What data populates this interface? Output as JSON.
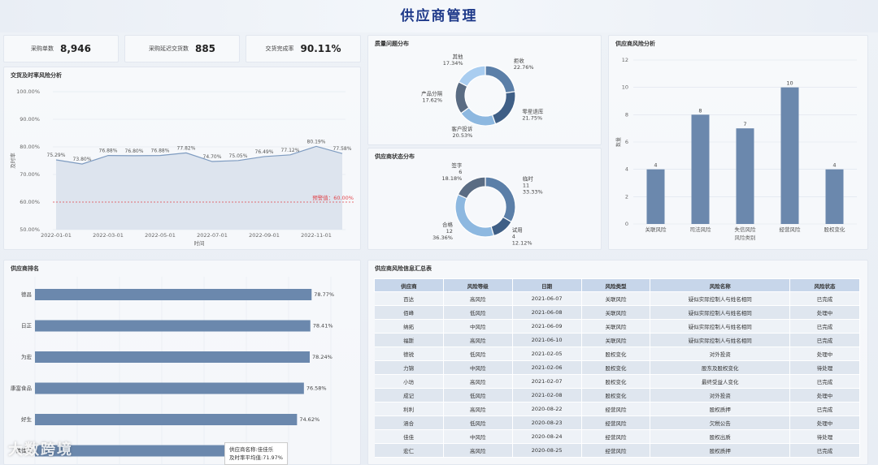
{
  "header": {
    "title": "供应商管理"
  },
  "kpis": [
    {
      "label": "采购单数",
      "value": "8,946"
    },
    {
      "label": "采购延迟交货数",
      "value": "885"
    },
    {
      "label": "交货完成率",
      "value": "90.11%"
    }
  ],
  "delivery_panel": {
    "title": "交货及时率风险分析"
  },
  "quality_panel": {
    "title": "质量问题分布"
  },
  "status_panel": {
    "title": "供应商状态分布"
  },
  "risk_panel": {
    "title": "供应商风险分析"
  },
  "ranking_panel": {
    "title": "供应商排名"
  },
  "table_panel": {
    "title": "供应商风险信息汇总表"
  },
  "chart_data": [
    {
      "type": "area",
      "title": "交货及时率风险分析",
      "xlabel": "时间",
      "ylabel": "及时率",
      "ylim": [
        50,
        100
      ],
      "yticks": [
        "100.00%",
        "90.00%",
        "80.00%",
        "70.00%",
        "60.00%",
        "50.00%"
      ],
      "xticks": [
        "2022-01-01",
        "2022-03-01",
        "2022-05-01",
        "2022-07-01",
        "2022-09-01",
        "2022-11-01"
      ],
      "values": [
        75.29,
        73.8,
        76.88,
        76.8,
        76.88,
        77.82,
        74.7,
        75.05,
        76.49,
        77.12,
        80.19,
        77.58
      ],
      "labels": [
        "75.29%",
        "73.80%",
        "76.88%",
        "76.80%",
        "76.88%",
        "77.82%",
        "74.70%",
        "75.05%",
        "76.49%",
        "77.12%",
        "80.19%",
        "77.58%"
      ],
      "threshold": 60,
      "threshold_label": "预警值：60.00%"
    },
    {
      "type": "pie",
      "title": "质量问题分布",
      "slices": [
        {
          "name": "拒收",
          "pct": "22.76%",
          "value": 22.76,
          "color": "#5b7fa8"
        },
        {
          "name": "零星退库",
          "pct": "21.75%",
          "value": 21.75,
          "color": "#3f5f86"
        },
        {
          "name": "客户投诉",
          "pct": "20.53%",
          "value": 20.53,
          "color": "#8db8e0"
        },
        {
          "name": "产品分隔",
          "pct": "17.62%",
          "value": 17.62,
          "color": "#5a6c83"
        },
        {
          "name": "其他",
          "pct": "17.34%",
          "value": 17.34,
          "color": "#a9cdf0"
        }
      ]
    },
    {
      "type": "pie",
      "title": "供应商状态分布",
      "slices": [
        {
          "name": "临时",
          "count": "11",
          "pct": "33.33%",
          "value": 11,
          "color": "#5b7fa8"
        },
        {
          "name": "试用",
          "count": "4",
          "pct": "12.12%",
          "value": 4,
          "color": "#3f5f86"
        },
        {
          "name": "合格",
          "count": "12",
          "pct": "36.36%",
          "value": 12,
          "color": "#8db8e0"
        },
        {
          "name": "签字",
          "count": "6",
          "pct": "18.18%",
          "value": 6,
          "color": "#5a6c83"
        }
      ]
    },
    {
      "type": "bar",
      "title": "供应商风险分析",
      "categories": [
        "关联风险",
        "司法风险",
        "失信风险",
        "经营风险",
        "股权变化"
      ],
      "values": [
        4,
        8,
        7,
        10,
        4
      ],
      "ylim": [
        0,
        12
      ],
      "yticks": [
        "12",
        "10",
        "8",
        "6",
        "4",
        "2",
        "0"
      ],
      "xlabel": "风险类别",
      "ylabel": "数量"
    },
    {
      "type": "bar",
      "orientation": "horizontal",
      "title": "供应商排名",
      "categories": [
        "德昌",
        "日正",
        "为宏",
        "康富食品",
        "好生",
        "佳佳乐"
      ],
      "values": [
        78.77,
        78.41,
        78.24,
        76.58,
        74.62,
        71.97
      ],
      "labels": [
        "78.77%",
        "78.41%",
        "78.24%",
        "76.58%",
        "74.62%",
        ""
      ],
      "xlim": [
        0,
        100
      ]
    }
  ],
  "tooltip": {
    "line1": "供应商名称:佳佳乐",
    "line2": "及时率平均值:71.97%"
  },
  "watermark": "大数跨境",
  "table": {
    "headers": [
      "供应商",
      "风险等级",
      "日期",
      "风险类型",
      "风险名称",
      "风险状态"
    ],
    "rows": [
      [
        "百达",
        "高风险",
        "2021-06-07",
        "关联风险",
        "疑似实际控制人与姓名相同",
        "已完成"
      ],
      [
        "佰峰",
        "低风险",
        "2021-06-08",
        "关联风险",
        "疑似实际控制人与姓名相同",
        "处理中"
      ],
      [
        "纳拓",
        "中风险",
        "2021-06-09",
        "关联风险",
        "疑似实际控制人与姓名相同",
        "已完成"
      ],
      [
        "福斯",
        "高风险",
        "2021-06-10",
        "关联风险",
        "疑似实际控制人与姓名相同",
        "已完成"
      ],
      [
        "德锐",
        "低风险",
        "2021-02-05",
        "股权变化",
        "对外投资",
        "处理中"
      ],
      [
        "力锦",
        "中风险",
        "2021-02-06",
        "股权变化",
        "股东及股权变化",
        "待处理"
      ],
      [
        "小坊",
        "高风险",
        "2021-02-07",
        "股权变化",
        "最终受益人变化",
        "已完成"
      ],
      [
        "成记",
        "低风险",
        "2021-02-08",
        "股权变化",
        "对外投资",
        "处理中"
      ],
      [
        "利利",
        "高风险",
        "2020-08-22",
        "经营风险",
        "股权质押",
        "已完成"
      ],
      [
        "涵合",
        "低风险",
        "2020-08-23",
        "经营风险",
        "欠税公告",
        "处理中"
      ],
      [
        "佳佳",
        "中风险",
        "2020-08-24",
        "经营风险",
        "股权出质",
        "待处理"
      ],
      [
        "宏仁",
        "高风险",
        "2020-08-25",
        "经营风险",
        "股权质押",
        "已完成"
      ]
    ]
  }
}
